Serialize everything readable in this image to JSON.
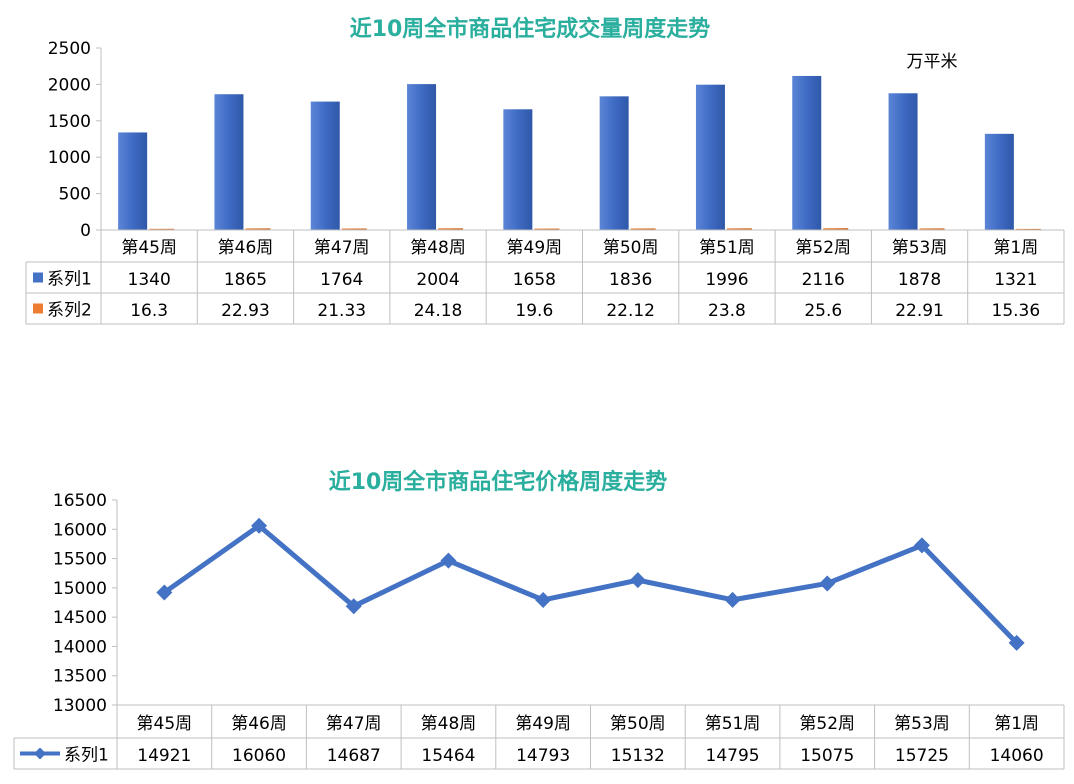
{
  "chart_data": [
    {
      "type": "bar",
      "title": "近10周全市商品住宅成交量周度走势",
      "unit_label": "万平米",
      "title_color": "#2AAE9E",
      "categories": [
        "第45周",
        "第46周",
        "第47周",
        "第48周",
        "第49周",
        "第50周",
        "第51周",
        "第52周",
        "第53周",
        "第1周"
      ],
      "ylim": [
        0,
        2500
      ],
      "yticks": [
        0,
        500,
        1000,
        1500,
        2000,
        2500
      ],
      "grid": false,
      "legend": "data-table",
      "series": [
        {
          "name": "系列1",
          "color": "#4472C4",
          "values": [
            1340,
            1865,
            1764,
            2004,
            1658,
            1836,
            1996,
            2116,
            1878,
            1321
          ],
          "labels": [
            "1340",
            "1865",
            "1764",
            "2004",
            "1658",
            "1836",
            "1996",
            "2116",
            "1878",
            "1321"
          ]
        },
        {
          "name": "系列2",
          "color": "#ED7D31",
          "values": [
            16.3,
            22.93,
            21.33,
            24.18,
            19.6,
            22.12,
            23.8,
            25.6,
            22.91,
            15.36
          ],
          "labels": [
            "16.3",
            "22.93",
            "21.33",
            "24.18",
            "19.6",
            "22.12",
            "23.8",
            "25.6",
            "22.91",
            "15.36"
          ]
        }
      ]
    },
    {
      "type": "line",
      "title": "近10周全市商品住宅价格周度走势",
      "title_color": "#2AAE9E",
      "categories": [
        "第45周",
        "第46周",
        "第47周",
        "第48周",
        "第49周",
        "第50周",
        "第51周",
        "第52周",
        "第53周",
        "第1周"
      ],
      "ylim": [
        13000,
        16500
      ],
      "yticks": [
        13000,
        13500,
        14000,
        14500,
        15000,
        15500,
        16000,
        16500
      ],
      "grid": false,
      "legend": "data-table",
      "series": [
        {
          "name": "系列1",
          "color": "#4472C4",
          "values": [
            14921,
            16060,
            14687,
            15464,
            14793,
            15132,
            14795,
            15075,
            15725,
            14060
          ],
          "labels": [
            "14921",
            "16060",
            "14687",
            "15464",
            "14793",
            "15132",
            "14795",
            "15075",
            "15725",
            "14060"
          ]
        }
      ]
    }
  ]
}
